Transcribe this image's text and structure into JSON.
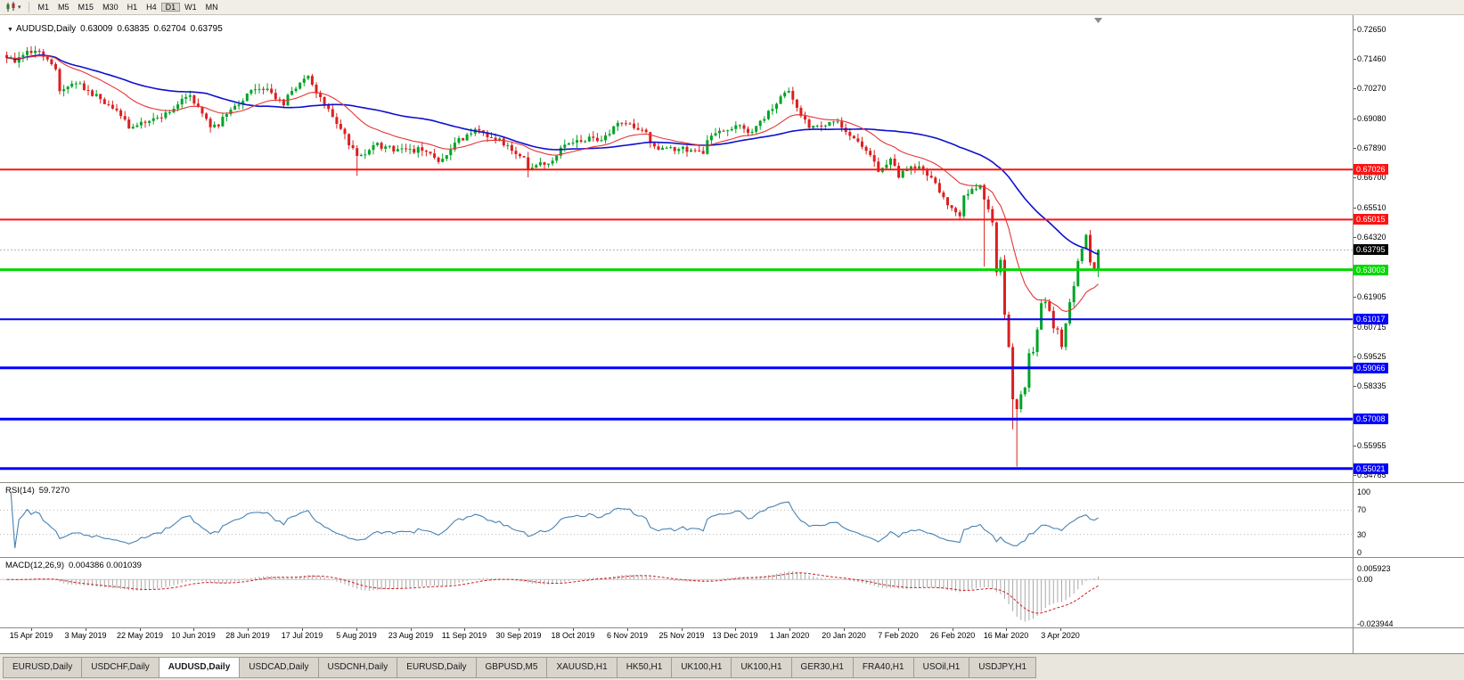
{
  "toolbar": {
    "timeframes": [
      {
        "label": "M1",
        "active": false
      },
      {
        "label": "M5",
        "active": false
      },
      {
        "label": "M15",
        "active": false
      },
      {
        "label": "M30",
        "active": false
      },
      {
        "label": "H1",
        "active": false
      },
      {
        "label": "H4",
        "active": false
      },
      {
        "label": "D1",
        "active": true
      },
      {
        "label": "W1",
        "active": false
      },
      {
        "label": "MN",
        "active": false
      }
    ]
  },
  "chart_title": {
    "symbol": "AUDUSD,Daily",
    "open": "0.63009",
    "high": "0.63835",
    "low": "0.62704",
    "close": "0.63795"
  },
  "chart_data": {
    "type": "candlestick",
    "symbol": "AUDUSD",
    "timeframe": "Daily",
    "current_bar": {
      "open": 0.63009,
      "high": 0.63835,
      "low": 0.62704,
      "close": 0.63795
    },
    "x_tick_dates": [
      "15 Apr 2019",
      "3 May 2019",
      "22 May 2019",
      "10 Jun 2019",
      "28 Jun 2019",
      "17 Jul 2019",
      "5 Aug 2019",
      "23 Aug 2019",
      "11 Sep 2019",
      "30 Sep 2019",
      "18 Oct 2019",
      "6 Nov 2019",
      "25 Nov 2019",
      "13 Dec 2019",
      "1 Jan 2020",
      "20 Jan 2020",
      "7 Feb 2020",
      "26 Feb 2020",
      "16 Mar 2020",
      "3 Apr 2020"
    ],
    "y_tick_labels": [
      "0.72650",
      "0.71460",
      "0.70270",
      "0.69080",
      "0.67890",
      "0.66700",
      "0.65510",
      "0.64320",
      "0.61905",
      "0.60715",
      "0.59525",
      "0.58335",
      "0.55955",
      "0.54765"
    ],
    "price_levels": [
      {
        "price": 0.67026,
        "label": "0.67026",
        "color": "#ff1212",
        "width": 2
      },
      {
        "price": 0.65015,
        "label": "0.65015",
        "color": "#ff1212",
        "width": 2
      },
      {
        "price": 0.63003,
        "label": "0.63003",
        "color": "#00d800",
        "width": 3
      },
      {
        "price": 0.61017,
        "label": "0.61017",
        "color": "#0000ff",
        "width": 2
      },
      {
        "price": 0.59066,
        "label": "0.59066",
        "color": "#0000ff",
        "width": 3
      },
      {
        "price": 0.57008,
        "label": "0.57008",
        "color": "#0000ff",
        "width": 3
      },
      {
        "price": 0.55021,
        "label": "0.55021",
        "color": "#0000ff",
        "width": 3
      }
    ],
    "current_price": {
      "value": 0.63795,
      "label": "0.63795",
      "badge_color": "#000000"
    },
    "candle_colors": {
      "up": "#00a325",
      "down": "#dc1f1f"
    },
    "overlays": [
      {
        "name": "ma-fast",
        "type": "ema",
        "period": 20,
        "color": "#e43535"
      },
      {
        "name": "ma-slow",
        "type": "sma",
        "period": 50,
        "color": "#0f0fd0"
      }
    ],
    "candles": {
      "count": 269,
      "close_waypoints": [
        [
          0,
          0.715
        ],
        [
          2,
          0.7132
        ],
        [
          4,
          0.7162
        ],
        [
          6,
          0.717
        ],
        [
          8,
          0.7176
        ],
        [
          9,
          0.7155
        ],
        [
          12,
          0.7105
        ],
        [
          13,
          0.7017
        ],
        [
          15,
          0.7035
        ],
        [
          17,
          0.7048
        ],
        [
          20,
          0.702
        ],
        [
          23,
          0.6985
        ],
        [
          27,
          0.694
        ],
        [
          30,
          0.6867
        ],
        [
          32,
          0.688
        ],
        [
          34,
          0.689
        ],
        [
          40,
          0.6932
        ],
        [
          45,
          0.7
        ],
        [
          50,
          0.6872
        ],
        [
          52,
          0.6876
        ],
        [
          54,
          0.6925
        ],
        [
          57,
          0.6963
        ],
        [
          60,
          0.7021
        ],
        [
          64,
          0.7027
        ],
        [
          68,
          0.696
        ],
        [
          70,
          0.7018
        ],
        [
          74,
          0.7078
        ],
        [
          75,
          0.7043
        ],
        [
          79,
          0.6945
        ],
        [
          83,
          0.6845
        ],
        [
          84,
          0.68
        ],
        [
          86,
          0.6757
        ],
        [
          88,
          0.6763
        ],
        [
          90,
          0.68
        ],
        [
          93,
          0.6795
        ],
        [
          95,
          0.6775
        ],
        [
          99,
          0.6785
        ],
        [
          102,
          0.6778
        ],
        [
          106,
          0.6733
        ],
        [
          108,
          0.676
        ],
        [
          110,
          0.681
        ],
        [
          115,
          0.6865
        ],
        [
          119,
          0.683
        ],
        [
          123,
          0.68
        ],
        [
          127,
          0.6751
        ],
        [
          128,
          0.6705
        ],
        [
          129,
          0.671
        ],
        [
          133,
          0.6726
        ],
        [
          136,
          0.679
        ],
        [
          140,
          0.682
        ],
        [
          146,
          0.682
        ],
        [
          150,
          0.689
        ],
        [
          152,
          0.6887
        ],
        [
          156,
          0.6862
        ],
        [
          160,
          0.6782
        ],
        [
          165,
          0.6785
        ],
        [
          168,
          0.678
        ],
        [
          171,
          0.6765
        ],
        [
          172,
          0.682
        ],
        [
          174,
          0.6848
        ],
        [
          178,
          0.6865
        ],
        [
          179,
          0.688
        ],
        [
          182,
          0.685
        ],
        [
          185,
          0.6898
        ],
        [
          189,
          0.6966
        ],
        [
          192,
          0.7018
        ],
        [
          193,
          0.6983
        ],
        [
          194,
          0.695
        ],
        [
          197,
          0.687
        ],
        [
          203,
          0.6895
        ],
        [
          205,
          0.687
        ],
        [
          208,
          0.6827
        ],
        [
          212,
          0.676
        ],
        [
          214,
          0.6693
        ],
        [
          217,
          0.6746
        ],
        [
          219,
          0.667
        ],
        [
          222,
          0.6715
        ],
        [
          224,
          0.6715
        ],
        [
          227,
          0.667
        ],
        [
          229,
          0.661
        ],
        [
          232,
          0.6548
        ],
        [
          234,
          0.6515
        ],
        [
          235,
          0.6598
        ],
        [
          237,
          0.6625
        ],
        [
          239,
          0.664
        ],
        [
          240,
          0.6582
        ],
        [
          242,
          0.649
        ],
        [
          243,
          0.629
        ],
        [
          244,
          0.634
        ],
        [
          245,
          0.612
        ],
        [
          246,
          0.599
        ],
        [
          247,
          0.578
        ],
        [
          248,
          0.5741
        ],
        [
          249,
          0.58
        ],
        [
          250,
          0.5827
        ],
        [
          251,
          0.5965
        ],
        [
          252,
          0.597
        ],
        [
          253,
          0.606
        ],
        [
          254,
          0.6166
        ],
        [
          255,
          0.6172
        ],
        [
          256,
          0.6135
        ],
        [
          257,
          0.6065
        ],
        [
          258,
          0.606
        ],
        [
          259,
          0.599
        ],
        [
          260,
          0.6085
        ],
        [
          261,
          0.617
        ],
        [
          262,
          0.6235
        ],
        [
          263,
          0.6335
        ],
        [
          264,
          0.6385
        ],
        [
          265,
          0.644
        ],
        [
          266,
          0.633
        ],
        [
          267,
          0.63009
        ],
        [
          268,
          0.63795
        ]
      ],
      "wick_overrides": {
        "13": {
          "low": 0.7004
        },
        "74": {
          "high": 0.7082
        },
        "86": {
          "low": 0.6677
        },
        "128": {
          "low": 0.6671
        },
        "192": {
          "high": 0.7032
        },
        "240": {
          "low": 0.6313
        },
        "247": {
          "low": 0.566
        },
        "248": {
          "low": 0.551
        },
        "259": {
          "low": 0.598
        },
        "265": {
          "high": 0.6445
        },
        "268": {
          "high": 0.63835,
          "low": 0.62704
        }
      }
    },
    "rsi": {
      "label": "RSI(14)",
      "value_label": "59.7270",
      "period": 14,
      "tick_labels": [
        "100",
        "70",
        "30",
        "0"
      ],
      "tick_values": [
        100,
        70,
        30,
        0
      ],
      "levels": [
        70,
        30
      ],
      "color": "#4682b4"
    },
    "macd": {
      "label": "MACD(12,26,9)",
      "value_label": "0.004386 0.001039",
      "fast": 12,
      "slow": 26,
      "signal": 9,
      "tick_labels": [
        "0.005923",
        "0.00",
        "-0.023944"
      ],
      "tick_values": [
        0.005923,
        0,
        -0.023944
      ],
      "histogram_color": "#a8a8a8",
      "signal_color": "#cc2020"
    }
  },
  "tabs": [
    {
      "label": "EURUSD,Daily",
      "active": false
    },
    {
      "label": "USDCHF,Daily",
      "active": false
    },
    {
      "label": "AUDUSD,Daily",
      "active": true
    },
    {
      "label": "USDCAD,Daily",
      "active": false
    },
    {
      "label": "USDCNH,Daily",
      "active": false
    },
    {
      "label": "EURUSD,Daily",
      "active": false
    },
    {
      "label": "GBPUSD,M5",
      "active": false
    },
    {
      "label": "XAUUSD,H1",
      "active": false
    },
    {
      "label": "HK50,H1",
      "active": false
    },
    {
      "label": "UK100,H1",
      "active": false
    },
    {
      "label": "UK100,H1",
      "active": false
    },
    {
      "label": "GER30,H1",
      "active": false
    },
    {
      "label": "FRA40,H1",
      "active": false
    },
    {
      "label": "USOil,H1",
      "active": false
    },
    {
      "label": "USDJPY,H1",
      "active": false
    }
  ]
}
